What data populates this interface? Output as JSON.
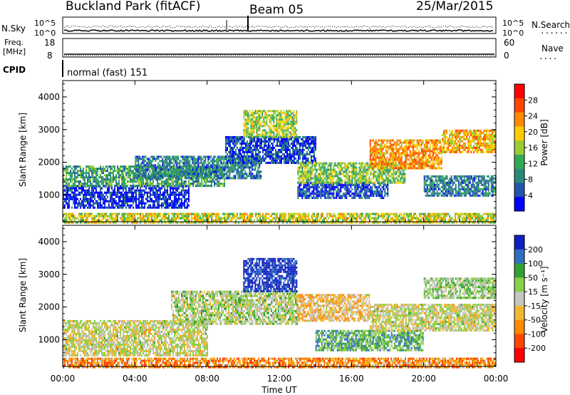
{
  "header": {
    "title": "Buckland Park (fitACF)",
    "beam": "Beam 05",
    "date": "25/Mar/2015"
  },
  "noise_panel": {
    "left_label": "N.Sky",
    "right_label": "N.Search",
    "left_ticks": [
      "10^5",
      "10^0"
    ],
    "right_ticks": [
      "10^5",
      "10^0"
    ]
  },
  "freq_panel": {
    "left_label_line1": "Freq.",
    "left_label_line2": "[MHz]",
    "right_label": "Nave",
    "left_ticks": [
      "18",
      "8"
    ],
    "right_ticks": [
      "60",
      "0"
    ]
  },
  "cpid_panel": {
    "label": "CPID",
    "value": "normal (fast) 151"
  },
  "chart_data": [
    {
      "type": "heatmap",
      "name": "power",
      "ylabel": "Slant Range [km]",
      "yticks": [
        1000,
        2000,
        3000,
        4000
      ],
      "ylim": [
        180,
        4500
      ],
      "colorbar_label": "Power [dB]",
      "colorbar_ticks": [
        "28",
        "24",
        "20",
        "16",
        "12",
        "8",
        "4"
      ],
      "colors": [
        "#ff0000",
        "#ff4400",
        "#ff8800",
        "#ffcc00",
        "#99cc33",
        "#33aa55",
        "#2a8a7a",
        "#2255aa",
        "#0000ff"
      ],
      "bands": [
        {
          "t": [
            0,
            7
          ],
          "r": [
            600,
            1300
          ],
          "level": 0.92
        },
        {
          "t": [
            0,
            9
          ],
          "r": [
            1300,
            1900
          ],
          "level": 0.65
        },
        {
          "t": [
            4,
            11
          ],
          "r": [
            1500,
            2200
          ],
          "level": 0.75
        },
        {
          "t": [
            9,
            14
          ],
          "r": [
            2000,
            2800
          ],
          "level": 0.85
        },
        {
          "t": [
            10,
            13
          ],
          "r": [
            2800,
            3600
          ],
          "level": 0.5
        },
        {
          "t": [
            13,
            18
          ],
          "r": [
            900,
            1400
          ],
          "level": 0.85
        },
        {
          "t": [
            13,
            19
          ],
          "r": [
            1400,
            2000
          ],
          "level": 0.55
        },
        {
          "t": [
            17,
            21
          ],
          "r": [
            1800,
            2700
          ],
          "level": 0.3
        },
        {
          "t": [
            20,
            24
          ],
          "r": [
            1000,
            1600
          ],
          "level": 0.75
        },
        {
          "t": [
            21,
            24
          ],
          "r": [
            2300,
            3000
          ],
          "level": 0.35
        },
        {
          "t": [
            0,
            24
          ],
          "r": [
            180,
            450
          ],
          "level": 0.45
        }
      ]
    },
    {
      "type": "heatmap",
      "name": "velocity",
      "ylabel": "Slant Range [km]",
      "yticks": [
        1000,
        2000,
        3000,
        4000
      ],
      "ylim": [
        180,
        4500
      ],
      "colorbar_label": "Velocity [m s⁻¹]",
      "colorbar_ticks": [
        "200",
        "100",
        "50",
        "15",
        "-15",
        "-50",
        "-100",
        "-200"
      ],
      "colors": [
        "#1020c0",
        "#2f6fbf",
        "#33a033",
        "#88d044",
        "#c4c4c0",
        "#f0b830",
        "#ff8800",
        "#ff4400",
        "#ff0000"
      ],
      "bands": [
        {
          "t": [
            0,
            8
          ],
          "r": [
            500,
            1600
          ],
          "level": 0.5
        },
        {
          "t": [
            6,
            13
          ],
          "r": [
            1500,
            2500
          ],
          "level": 0.45
        },
        {
          "t": [
            10,
            13
          ],
          "r": [
            2500,
            3500
          ],
          "level": 0.05
        },
        {
          "t": [
            13,
            17
          ],
          "r": [
            1600,
            2400
          ],
          "level": 0.6
        },
        {
          "t": [
            14,
            20
          ],
          "r": [
            700,
            1300
          ],
          "level": 0.3
        },
        {
          "t": [
            17,
            24
          ],
          "r": [
            1300,
            2100
          ],
          "level": 0.5
        },
        {
          "t": [
            20,
            24
          ],
          "r": [
            2300,
            2900
          ],
          "level": 0.4
        },
        {
          "t": [
            0,
            24
          ],
          "r": [
            180,
            450
          ],
          "level": 0.7
        }
      ]
    }
  ],
  "x_axis": {
    "ticks": [
      "00:00",
      "04:00",
      "08:00",
      "12:00",
      "16:00",
      "20:00",
      "00:00"
    ],
    "label": "Time UT",
    "range_hours": [
      0,
      24
    ]
  }
}
